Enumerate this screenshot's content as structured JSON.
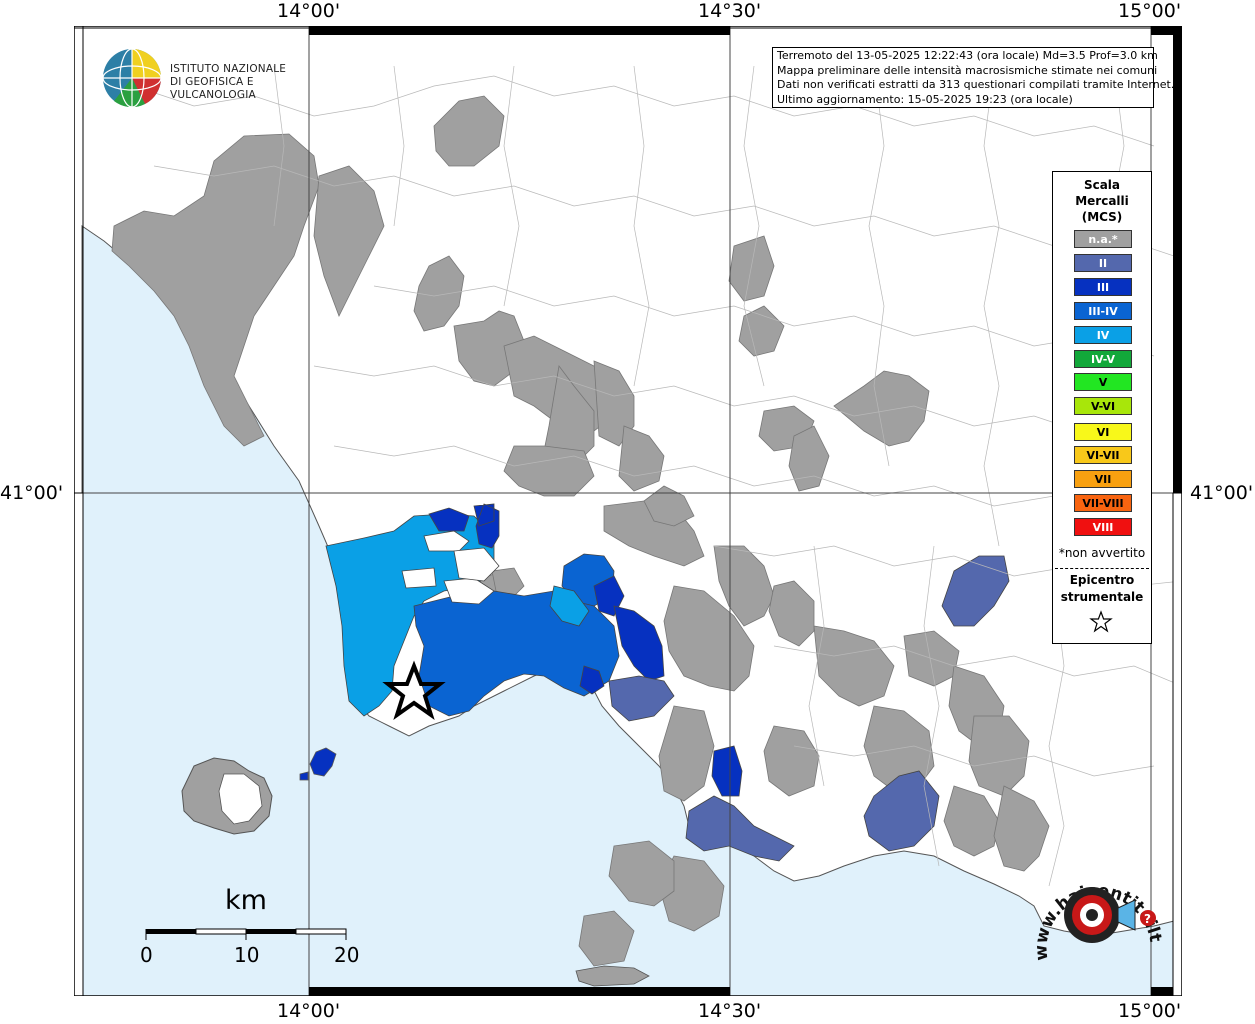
{
  "coordinates": {
    "top": [
      "14°00'",
      "14°30'",
      "15°00'"
    ],
    "bottom": [
      "14°00'",
      "14°30'",
      "15°00'"
    ],
    "left_lat": "41°00'",
    "right_lat": "41°00'"
  },
  "logo": {
    "line1": "ISTITUTO NAZIONALE",
    "line2": "DI GEOFISICA E VULCANOLOGIA"
  },
  "info": {
    "line1": "Terremoto del 13-05-2025 12:22:43 (ora locale) Md=3.5 Prof=3.0 km",
    "line2": "Mappa preliminare delle intensità macrosismiche stimate nei comuni",
    "line3": "Dati non verificati estratti da 313 questionari compilati tramite Internet.",
    "line4": "Ultimo aggiornamento: 15-05-2025 19:23 (ora locale)"
  },
  "legend": {
    "title_line1": "Scala",
    "title_line2": "Mercalli",
    "title_line3": "(MCS)",
    "items": [
      {
        "label": "n.a.*",
        "color": "#a0a0a0"
      },
      {
        "label": "II",
        "color": "#5468ad"
      },
      {
        "label": "III",
        "color": "#0631c0"
      },
      {
        "label": "III-IV",
        "color": "#0a64d2"
      },
      {
        "label": "IV",
        "color": "#0aa0e6"
      },
      {
        "label": "IV-V",
        "color": "#12a83a"
      },
      {
        "label": "V",
        "color": "#22e622"
      },
      {
        "label": "V-VI",
        "color": "#a8e60a"
      },
      {
        "label": "VI",
        "color": "#f8f81a"
      },
      {
        "label": "VI-VII",
        "color": "#f8c81a"
      },
      {
        "label": "VII",
        "color": "#f8a010"
      },
      {
        "label": "VII-VIII",
        "color": "#f86410"
      },
      {
        "label": "VIII",
        "color": "#f01010"
      }
    ],
    "note": "*non avvertito",
    "epicenter_line1": "Epicentro",
    "epicenter_line2": "strumentale"
  },
  "scale": {
    "unit": "km",
    "ticks": [
      "0",
      "10",
      "20"
    ]
  },
  "hst": {
    "text": "www.haisentitoilterremoto.it"
  },
  "colors": {
    "sea": "#e0f1fb",
    "land": "#ffffff",
    "na": "#a0a0a0",
    "II": "#5468ad",
    "III": "#0631c0",
    "III_IV": "#0a64d2",
    "IV": "#0aa0e6"
  }
}
